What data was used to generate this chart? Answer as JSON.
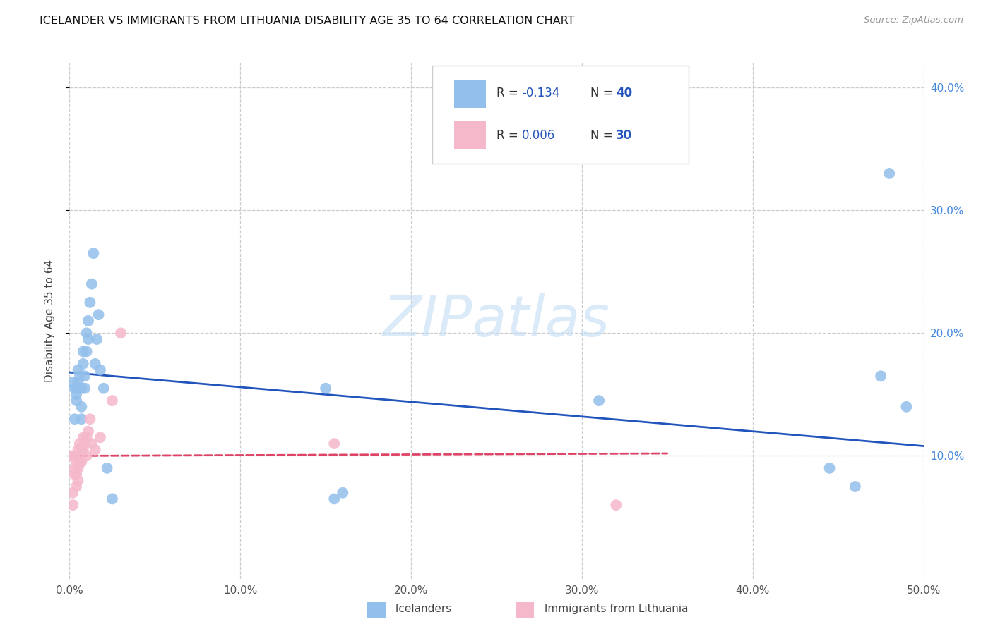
{
  "title": "ICELANDER VS IMMIGRANTS FROM LITHUANIA DISABILITY AGE 35 TO 64 CORRELATION CHART",
  "source": "Source: ZipAtlas.com",
  "ylabel": "Disability Age 35 to 64",
  "xlim": [
    0.0,
    0.5
  ],
  "ylim": [
    0.0,
    0.42
  ],
  "xticks": [
    0.0,
    0.1,
    0.2,
    0.3,
    0.4,
    0.5
  ],
  "yticks": [
    0.1,
    0.2,
    0.3,
    0.4
  ],
  "xtick_labels": [
    "0.0%",
    "10.0%",
    "20.0%",
    "30.0%",
    "40.0%",
    "50.0%"
  ],
  "ytick_labels_right": [
    "10.0%",
    "20.0%",
    "30.0%",
    "40.0%"
  ],
  "legend_r1": "-0.134",
  "legend_n1": "40",
  "legend_r2": "0.006",
  "legend_n2": "30",
  "watermark": "ZIPatlas",
  "blue_color": "#92bfec",
  "pink_color": "#f5b8cb",
  "line_blue": "#2255bb",
  "line_pink": "#dd4466",
  "icelanders_x": [
    0.002,
    0.003,
    0.003,
    0.004,
    0.004,
    0.004,
    0.005,
    0.005,
    0.006,
    0.006,
    0.007,
    0.007,
    0.007,
    0.008,
    0.008,
    0.009,
    0.009,
    0.01,
    0.01,
    0.011,
    0.011,
    0.012,
    0.013,
    0.014,
    0.015,
    0.016,
    0.017,
    0.018,
    0.02,
    0.022,
    0.025,
    0.15,
    0.155,
    0.16,
    0.31,
    0.445,
    0.46,
    0.475,
    0.48,
    0.49
  ],
  "icelanders_y": [
    0.16,
    0.155,
    0.13,
    0.145,
    0.15,
    0.155,
    0.16,
    0.17,
    0.155,
    0.165,
    0.13,
    0.14,
    0.155,
    0.185,
    0.175,
    0.155,
    0.165,
    0.185,
    0.2,
    0.195,
    0.21,
    0.225,
    0.24,
    0.265,
    0.175,
    0.195,
    0.215,
    0.17,
    0.155,
    0.09,
    0.065,
    0.155,
    0.065,
    0.07,
    0.145,
    0.09,
    0.075,
    0.165,
    0.33,
    0.14
  ],
  "lithuania_x": [
    0.001,
    0.002,
    0.002,
    0.003,
    0.003,
    0.003,
    0.004,
    0.004,
    0.004,
    0.005,
    0.005,
    0.005,
    0.006,
    0.006,
    0.007,
    0.007,
    0.008,
    0.008,
    0.009,
    0.01,
    0.01,
    0.011,
    0.012,
    0.013,
    0.015,
    0.018,
    0.025,
    0.03,
    0.155,
    0.32
  ],
  "lithuania_y": [
    0.1,
    0.06,
    0.07,
    0.085,
    0.09,
    0.1,
    0.075,
    0.085,
    0.095,
    0.08,
    0.09,
    0.105,
    0.095,
    0.11,
    0.095,
    0.105,
    0.105,
    0.115,
    0.11,
    0.1,
    0.115,
    0.12,
    0.13,
    0.11,
    0.105,
    0.115,
    0.145,
    0.2,
    0.11,
    0.06
  ],
  "blue_trend_start_x": 0.0,
  "blue_trend_end_x": 0.5,
  "blue_trend_start_y": 0.168,
  "blue_trend_end_y": 0.108,
  "pink_trend_start_x": 0.0,
  "pink_trend_end_x": 0.35,
  "pink_trend_start_y": 0.1,
  "pink_trend_end_y": 0.102
}
